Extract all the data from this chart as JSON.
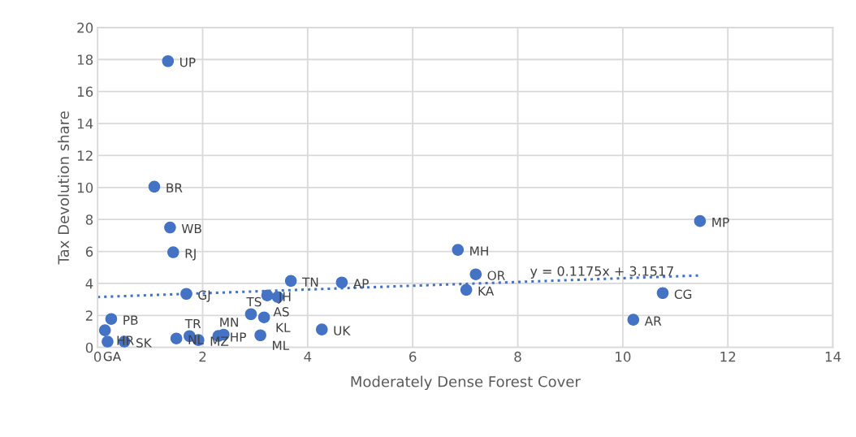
{
  "chart_data": {
    "type": "scatter",
    "xlabel": "Moderately Dense Forest Cover",
    "ylabel": "Tax Devolution share",
    "xlim": [
      0,
      14
    ],
    "xticks": [
      0,
      2,
      4,
      6,
      8,
      10,
      12,
      14
    ],
    "ylim": [
      0,
      20
    ],
    "yticks": [
      0,
      2,
      4,
      6,
      8,
      10,
      12,
      14,
      16,
      18,
      20
    ],
    "grid": true,
    "marker": "circle",
    "series": [
      {
        "color": "#4472c4",
        "x": [
          1.34,
          1.08,
          1.38,
          1.44,
          1.69,
          3.68,
          4.65,
          3.23,
          3.43,
          6.86,
          7.2,
          7.02,
          11.47,
          10.76,
          10.2,
          2.92,
          3.17,
          0.26,
          0.14,
          0.19,
          0.51,
          4.27,
          1.5,
          1.75,
          1.92,
          2.3,
          2.4,
          3.1
        ],
        "values": [
          17.9,
          10.05,
          7.5,
          5.95,
          3.35,
          4.16,
          4.06,
          3.25,
          3.15,
          6.1,
          4.57,
          3.6,
          7.9,
          3.4,
          1.73,
          2.08,
          1.88,
          1.78,
          1.07,
          0.36,
          0.36,
          1.12,
          0.56,
          0.71,
          0.46,
          0.72,
          0.8,
          0.76
        ]
      },
      {
        "type": "line",
        "color": "#4472c4",
        "line_style": "dotted",
        "marker": "none",
        "x": [
          0,
          11.47
        ],
        "values": [
          3.15,
          4.5
        ]
      }
    ],
    "annotations": [
      {
        "text": "UP",
        "x": 1.34,
        "y": 17.9
      },
      {
        "text": "BR",
        "x": 1.08,
        "y": 10.05
      },
      {
        "text": "WB",
        "x": 1.38,
        "y": 7.5
      },
      {
        "text": "RJ",
        "x": 1.44,
        "y": 5.95
      },
      {
        "text": "GJ",
        "x": 1.69,
        "y": 3.35
      },
      {
        "text": "TN",
        "x": 3.68,
        "y": 4.16
      },
      {
        "text": "AP",
        "x": 4.65,
        "y": 4.06
      },
      {
        "text": "JH",
        "x": 3.23,
        "y": 3.25
      },
      {
        "text": "AS",
        "x": 3.43,
        "y": 3.15
      },
      {
        "text": "MH",
        "x": 6.86,
        "y": 6.1
      },
      {
        "text": "OR",
        "x": 7.2,
        "y": 4.57
      },
      {
        "text": "KA",
        "x": 7.02,
        "y": 3.6
      },
      {
        "text": "MP",
        "x": 11.47,
        "y": 7.9
      },
      {
        "text": "CG",
        "x": 10.76,
        "y": 3.4
      },
      {
        "text": "AR",
        "x": 10.2,
        "y": 1.73
      },
      {
        "text": "TS",
        "x": 2.92,
        "y": 2.08
      },
      {
        "text": "KL",
        "x": 3.17,
        "y": 1.88
      },
      {
        "text": "PB",
        "x": 0.26,
        "y": 1.78
      },
      {
        "text": "HR",
        "x": 0.14,
        "y": 1.07
      },
      {
        "text": "GA",
        "x": 0.19,
        "y": 0.36
      },
      {
        "text": "SK",
        "x": 0.51,
        "y": 0.36
      },
      {
        "text": "UK",
        "x": 4.27,
        "y": 1.12
      },
      {
        "text": "NL",
        "x": 1.5,
        "y": 0.56
      },
      {
        "text": "TR",
        "x": 1.75,
        "y": 0.71
      },
      {
        "text": "MZ",
        "x": 1.92,
        "y": 0.46
      },
      {
        "text": "HP",
        "x": 2.3,
        "y": 0.72
      },
      {
        "text": "MN",
        "x": 2.4,
        "y": 0.8
      },
      {
        "text": "ML",
        "x": 3.1,
        "y": 0.76
      },
      "y = 0.1175x + 3.1517"
    ]
  }
}
